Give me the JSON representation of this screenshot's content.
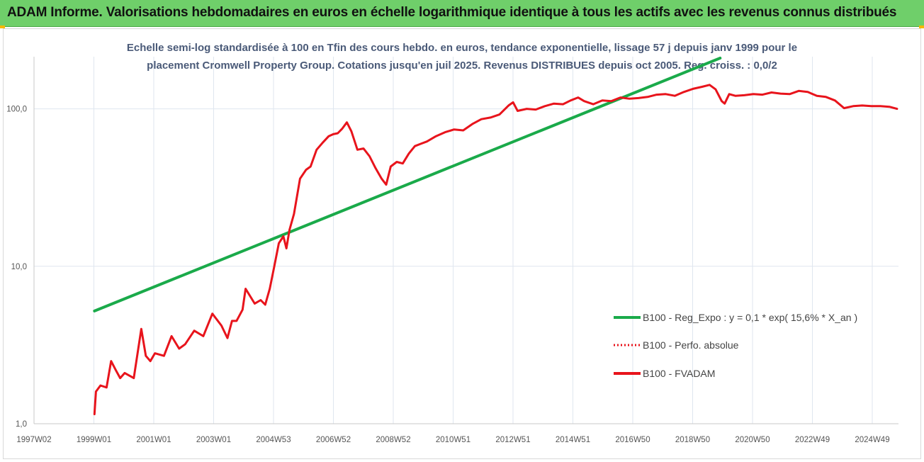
{
  "header": {
    "title": "ADAM Informe. Valorisations hebdomadaires en euros en échelle logarithmique identique à tous les actifs avec les revenus connus distribués"
  },
  "colors": {
    "header_bg": "#6fcf6a",
    "regression": "#1aaa4a",
    "price": "#e8141c",
    "grid": "#dfe6ef"
  },
  "chart_data": {
    "type": "line",
    "y_scale": "log",
    "ylim": [
      1.0,
      210.0
    ],
    "subtitle_lines": [
      "Echelle semi-log standardisée à 100 en Tfin des cours hebdo. en euros, tendance exponentielle, lissage 57 j depuis janv 1999 pour le",
      "placement Cromwell Property Group. Cotations jusqu'en juil 2025. Revenus DISTRIBUES depuis oct 2005. Reg. croiss. : 0,0/2"
    ],
    "y_ticks": [
      {
        "value": 1.0,
        "label": "1,0"
      },
      {
        "value": 10.0,
        "label": "10,0"
      },
      {
        "value": 100.0,
        "label": "100,0"
      }
    ],
    "x_ticks": [
      "1997W02",
      "1999W01",
      "2001W01",
      "2003W01",
      "2004W53",
      "2006W52",
      "2008W52",
      "2010W51",
      "2012W51",
      "2014W51",
      "2016W50",
      "2018W50",
      "2020W50",
      "2022W49",
      "2024W49"
    ],
    "x_range": [
      1997.0,
      2025.6
    ],
    "legend": {
      "position": "right-middle",
      "entries": [
        {
          "label": "B100 - Reg_Expo : y = 0,1 * exp( 15,6% *  X_an )",
          "style": "solid-green"
        },
        {
          "label": "B100 - Perfo. absolue",
          "style": "dotted-red"
        },
        {
          "label": "B100 - FVADAM",
          "style": "solid-red"
        }
      ]
    },
    "series": [
      {
        "name": "B100 - Reg_Expo : y = 0,1 * exp( 15,6% *  X_an )",
        "x": [
          1999.0,
          2019.7
        ],
        "y": [
          5.2,
          210.0
        ]
      },
      {
        "name": "B100 - FVADAM",
        "x": [
          1999.0,
          1999.05,
          1999.2,
          1999.4,
          1999.55,
          1999.7,
          1999.85,
          2000.0,
          2000.3,
          2000.55,
          2000.7,
          2000.85,
          2001.0,
          2001.3,
          2001.55,
          2001.8,
          2002.0,
          2002.3,
          2002.6,
          2002.9,
          2003.2,
          2003.4,
          2003.55,
          2003.7,
          2003.9,
          2004.0,
          2004.3,
          2004.5,
          2004.65,
          2004.8,
          2004.95,
          2005.1,
          2005.25,
          2005.35,
          2005.45,
          2005.6,
          2005.8,
          2006.0,
          2006.15,
          2006.35,
          2006.55,
          2006.75,
          2006.9,
          2007.05,
          2007.2,
          2007.35,
          2007.5,
          2007.7,
          2007.9,
          2008.1,
          2008.3,
          2008.5,
          2008.65,
          2008.8,
          2009.0,
          2009.2,
          2009.4,
          2009.6,
          2009.8,
          2010.0,
          2010.3,
          2010.6,
          2010.9,
          2011.2,
          2011.5,
          2011.8,
          2012.1,
          2012.4,
          2012.7,
          2012.85,
          2013.0,
          2013.3,
          2013.6,
          2013.9,
          2014.2,
          2014.5,
          2014.75,
          2015.0,
          2015.2,
          2015.5,
          2015.8,
          2016.1,
          2016.4,
          2016.7,
          2017.0,
          2017.3,
          2017.6,
          2017.9,
          2018.2,
          2018.5,
          2018.8,
          2019.1,
          2019.35,
          2019.55,
          2019.75,
          2019.85,
          2020.0,
          2020.2,
          2020.5,
          2020.8,
          2021.1,
          2021.4,
          2021.7,
          2022.0,
          2022.3,
          2022.6,
          2022.9,
          2023.2,
          2023.5,
          2023.8,
          2024.1,
          2024.4,
          2024.7,
          2025.0,
          2025.3,
          2025.55
        ],
        "y": [
          1.15,
          1.6,
          1.75,
          1.7,
          2.5,
          2.2,
          1.95,
          2.1,
          1.95,
          4.0,
          2.7,
          2.5,
          2.8,
          2.7,
          3.6,
          3.0,
          3.2,
          3.9,
          3.6,
          5.0,
          4.2,
          3.5,
          4.5,
          4.5,
          5.3,
          7.2,
          5.8,
          6.1,
          5.7,
          7.2,
          10.0,
          14.0,
          15.5,
          13.0,
          17.0,
          21.5,
          36.0,
          41.0,
          43.0,
          55.0,
          61.0,
          67.0,
          69.0,
          70.0,
          75.0,
          82.0,
          72.0,
          55.0,
          56.0,
          50.0,
          42.0,
          36.0,
          33.0,
          43.0,
          46.0,
          45.0,
          52.0,
          58.0,
          60.0,
          62.0,
          67.0,
          71.0,
          74.0,
          73.0,
          80.0,
          86.0,
          88.0,
          92.0,
          105.0,
          110.0,
          97.0,
          100.0,
          99.0,
          104.0,
          108.0,
          107.0,
          113.0,
          118.0,
          112.0,
          107.0,
          113.0,
          112.0,
          118.0,
          116.0,
          117.0,
          119.0,
          123.0,
          124.0,
          121.0,
          128.0,
          134.0,
          138.0,
          142.0,
          133.0,
          112.0,
          108.0,
          124.0,
          121.0,
          122.0,
          124.0,
          123.0,
          127.0,
          125.0,
          124.0,
          130.0,
          128.0,
          121.0,
          119.0,
          113.0,
          101.0,
          104.0,
          105.0,
          104.0,
          104.0,
          103.0,
          100.0
        ]
      }
    ]
  }
}
